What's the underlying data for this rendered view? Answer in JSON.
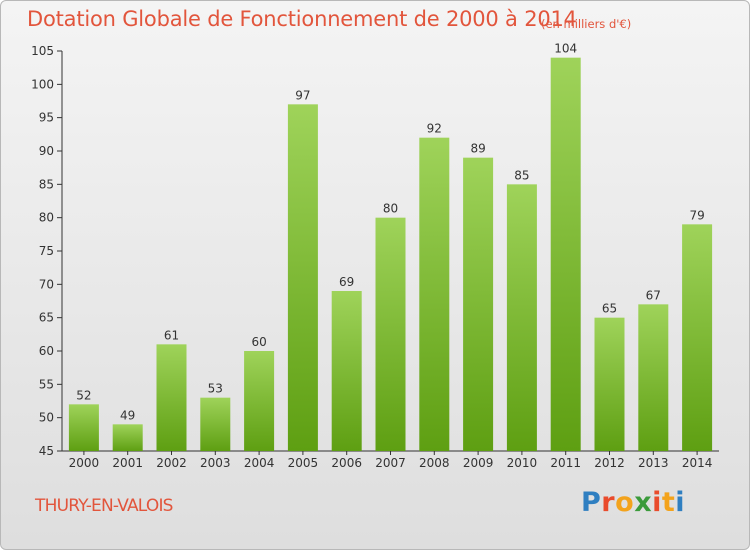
{
  "header": {
    "title": "Dotation Globale de Fonctionnement de 2000 à 2014",
    "subtitle": "(en milliers d'€)"
  },
  "footer": {
    "commune": "THURY-EN-VALOIS",
    "logo_text": "Proxiti",
    "logo_colors": [
      "#2f7fc1",
      "#e94b2c",
      "#f3a31c",
      "#3b9b3b",
      "#e94b2c",
      "#f3a31c",
      "#2f7fc1"
    ]
  },
  "colors": {
    "bar_top": "#9fd35a",
    "bar_bottom": "#5e9f12",
    "axis": "#333333",
    "grid": "#cfcfcf",
    "label": "#333333",
    "title": "#e2553c"
  },
  "chart_data": {
    "type": "bar",
    "title": "Dotation Globale de Fonctionnement de 2000 à 2014",
    "subtitle": "(en milliers d'€)",
    "categories": [
      "2000",
      "2001",
      "2002",
      "2003",
      "2004",
      "2005",
      "2006",
      "2007",
      "2008",
      "2009",
      "2010",
      "2011",
      "2012",
      "2013",
      "2014"
    ],
    "values": [
      52,
      49,
      61,
      53,
      60,
      97,
      69,
      80,
      92,
      89,
      85,
      104,
      65,
      67,
      79
    ],
    "ylim": [
      45,
      105
    ],
    "yticks": [
      45,
      50,
      55,
      60,
      65,
      70,
      75,
      80,
      85,
      90,
      95,
      100,
      105
    ],
    "grid": false,
    "legend": "none"
  }
}
